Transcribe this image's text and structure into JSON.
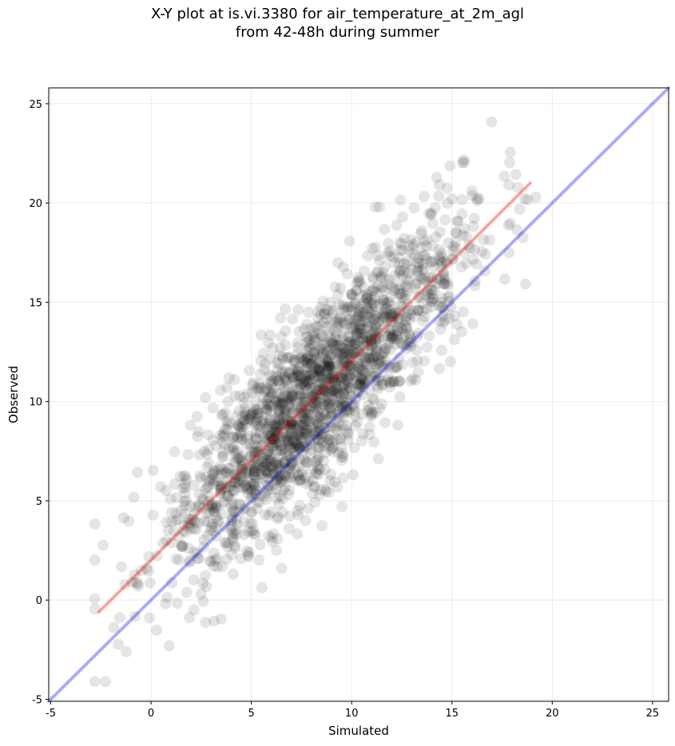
{
  "chart_data": {
    "type": "scatter",
    "title_line1": "X-Y plot at is.vi.3380 for air_temperature_at_2m_agl",
    "title_line2": "from 42-48h during summer",
    "xlabel": "Simulated",
    "ylabel": "Observed",
    "xlim": [
      -5.1,
      25.8
    ],
    "ylim": [
      -5.1,
      25.8
    ],
    "xticks": [
      -5,
      0,
      5,
      10,
      15,
      20,
      25
    ],
    "yticks": [
      -5,
      0,
      5,
      10,
      15,
      20,
      25
    ],
    "grid": true,
    "point_color": "#000000",
    "point_alpha": 0.1,
    "identity_line": {
      "x": [
        -5.1,
        25.8
      ],
      "y": [
        -5.1,
        25.8
      ],
      "color": "#0000ee"
    },
    "fit_line": {
      "x": [
        -2.6,
        18.9
      ],
      "y": [
        -0.6,
        21.0
      ],
      "color": "#ee0000"
    },
    "distribution": {
      "approximate_point_count": 2000,
      "simulated_mean": 8.2,
      "simulated_sd": 3.7,
      "observed_vs_simulated_intercept": 2.0,
      "observed_vs_simulated_slope": 1.0,
      "residual_sd": 2.2
    }
  }
}
